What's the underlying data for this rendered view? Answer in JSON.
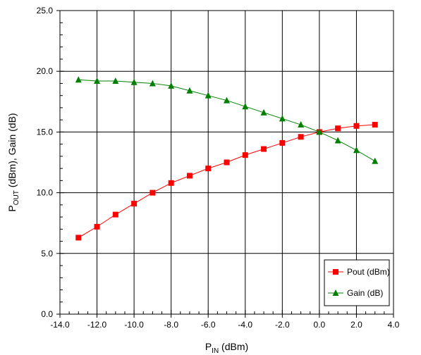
{
  "chart_data": {
    "type": "line",
    "xlabel": {
      "main": "P",
      "sub": "IN",
      "rest": " (dBm)"
    },
    "ylabel": {
      "main1": "P",
      "sub": "OUT",
      "rest": " (dBm), Gain (dB)"
    },
    "xlim": [
      -14,
      4
    ],
    "ylim": [
      0,
      25
    ],
    "xticks": [
      -14,
      -12,
      -10,
      -8,
      -6,
      -4,
      -2,
      0,
      2,
      4
    ],
    "xtick_labels": [
      "-14.0",
      "-12.0",
      "-10.0",
      "-8.0",
      "-6.0",
      "-4.0",
      "-2.0",
      "0.0",
      "2.0",
      "4.0"
    ],
    "yticks": [
      0,
      5,
      10,
      15,
      20,
      25
    ],
    "ytick_labels": [
      "0.0",
      "5.0",
      "10.0",
      "15.0",
      "20.0",
      "25.0"
    ],
    "grid": true,
    "legend_position": "bottom-right",
    "series": [
      {
        "name": "Pout (dBm)",
        "color": "#ff0000",
        "marker": "square",
        "x": [
          -13,
          -12,
          -11,
          -10,
          -9,
          -8,
          -7,
          -6,
          -5,
          -4,
          -3,
          -2,
          -1,
          0,
          1,
          2,
          3
        ],
        "y": [
          6.3,
          7.2,
          8.2,
          9.1,
          10.0,
          10.8,
          11.4,
          12.0,
          12.5,
          13.1,
          13.6,
          14.1,
          14.6,
          15.0,
          15.3,
          15.5,
          15.6
        ]
      },
      {
        "name": "Gain (dB)",
        "color": "#008000",
        "marker": "triangle",
        "x": [
          -13,
          -12,
          -11,
          -10,
          -9,
          -8,
          -7,
          -6,
          -5,
          -4,
          -3,
          -2,
          -1,
          0,
          1,
          2,
          3
        ],
        "y": [
          19.3,
          19.2,
          19.2,
          19.1,
          19.0,
          18.8,
          18.4,
          18.0,
          17.6,
          17.1,
          16.6,
          16.1,
          15.6,
          15.0,
          14.3,
          13.5,
          12.6
        ]
      }
    ]
  }
}
